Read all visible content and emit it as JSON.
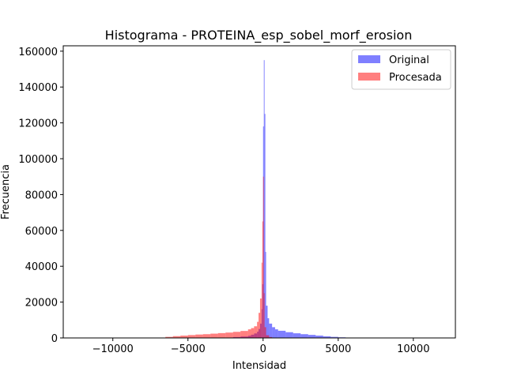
{
  "chart_data": {
    "type": "histogram",
    "title": "Histograma - PROTEINA_esp_sobel_morf_erosion",
    "xlabel": "Intensidad",
    "ylabel": "Frecuencia",
    "xlim": [
      -13300,
      12800
    ],
    "ylim": [
      0,
      163000
    ],
    "xticks": [
      -10000,
      -5000,
      0,
      5000,
      10000
    ],
    "xtick_labels": [
      "−10000",
      "−5000",
      "0",
      "5000",
      "10000"
    ],
    "yticks": [
      0,
      20000,
      40000,
      60000,
      80000,
      100000,
      120000,
      140000,
      160000
    ],
    "ytick_labels": [
      "0",
      "20000",
      "40000",
      "60000",
      "80000",
      "100000",
      "120000",
      "140000",
      "160000"
    ],
    "legend_position": "top-right",
    "series": [
      {
        "name": "Original",
        "color": "#0000ff",
        "alpha": 0.5,
        "bins": [
          [
            -2000,
            500
          ],
          [
            -1500,
            800
          ],
          [
            -1000,
            1200
          ],
          [
            -800,
            1800
          ],
          [
            -600,
            2500
          ],
          [
            -400,
            3500
          ],
          [
            -300,
            5000
          ],
          [
            -200,
            8000
          ],
          [
            -100,
            16000
          ],
          [
            -50,
            30000
          ],
          [
            0,
            118000
          ],
          [
            50,
            155000
          ],
          [
            100,
            125000
          ],
          [
            150,
            48000
          ],
          [
            200,
            18000
          ],
          [
            300,
            11000
          ],
          [
            400,
            8000
          ],
          [
            600,
            6000
          ],
          [
            800,
            4800
          ],
          [
            1000,
            4000
          ],
          [
            1500,
            3200
          ],
          [
            2000,
            2600
          ],
          [
            2500,
            2100
          ],
          [
            3000,
            1700
          ],
          [
            3500,
            1300
          ],
          [
            4000,
            900
          ],
          [
            4500,
            600
          ],
          [
            5000,
            350
          ],
          [
            5500,
            200
          ],
          [
            6000,
            100
          ]
        ]
      },
      {
        "name": "Procesada",
        "color": "#ff0000",
        "alpha": 0.5,
        "bins": [
          [
            -7000,
            200
          ],
          [
            -6500,
            600
          ],
          [
            -6000,
            1000
          ],
          [
            -5500,
            1300
          ],
          [
            -5000,
            1600
          ],
          [
            -4500,
            1900
          ],
          [
            -4000,
            2100
          ],
          [
            -3500,
            2400
          ],
          [
            -3000,
            2700
          ],
          [
            -2500,
            3000
          ],
          [
            -2000,
            3400
          ],
          [
            -1500,
            3900
          ],
          [
            -1000,
            4800
          ],
          [
            -800,
            5500
          ],
          [
            -600,
            6500
          ],
          [
            -400,
            9000
          ],
          [
            -300,
            14000
          ],
          [
            -200,
            22000
          ],
          [
            -100,
            42000
          ],
          [
            -50,
            65000
          ],
          [
            0,
            90000
          ],
          [
            50,
            25000
          ],
          [
            100,
            6000
          ],
          [
            200,
            1500
          ],
          [
            400,
            500
          ]
        ]
      }
    ]
  }
}
